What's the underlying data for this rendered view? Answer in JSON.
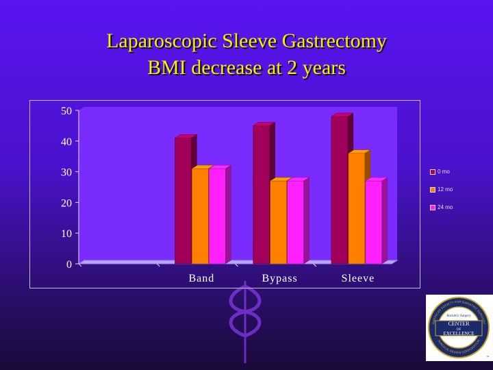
{
  "slide": {
    "title_line1": "Laparoscopic Sleeve Gastrectomy",
    "title_line2": "BMI decrease at 2 years"
  },
  "logo": {
    "text_top": "AMERICAN SOCIETY FOR BARIATRIC SURGERY",
    "text_bottom": "SURGICAL REVIEW CORPORATION",
    "line1": "Bariatric Surgery",
    "line2": "CENTER",
    "line3": "OF",
    "line4": "EXCELLENCE",
    "mark": "™",
    "colors": {
      "navy": "#1b2a6b",
      "gold": "#c9a227"
    }
  },
  "colors": {
    "background": "#5a14f0",
    "title": "#f6f000",
    "plot_bg": "#7a2cff",
    "axis_text": "#ffffff"
  },
  "chart_data": {
    "type": "bar",
    "three_d": true,
    "categories": [
      "",
      "Band",
      "Bypass",
      "Sleeve"
    ],
    "series": [
      {
        "name": "0 mo",
        "values": [
          0,
          41,
          45,
          48
        ],
        "color": "#a0005a"
      },
      {
        "name": "12 mo",
        "values": [
          0,
          31,
          27,
          36
        ],
        "color": "#ff8000"
      },
      {
        "name": "24 mo",
        "values": [
          0,
          31,
          27,
          27
        ],
        "color": "#ff20ff"
      }
    ],
    "yticks": [
      0,
      10,
      20,
      30,
      40,
      50
    ],
    "ylim": [
      0,
      50
    ],
    "legend_position": "right",
    "grid": false
  }
}
